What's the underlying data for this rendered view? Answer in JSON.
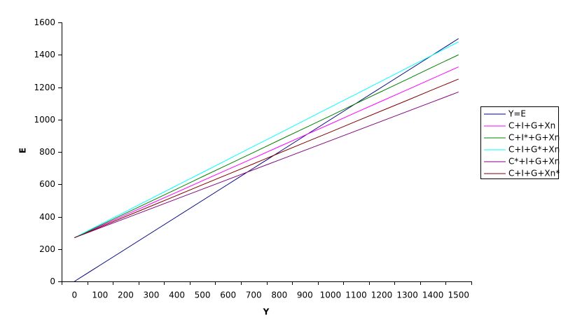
{
  "chart_data": {
    "type": "line",
    "x_label": "Y",
    "y_label": "E",
    "categories": [
      "0",
      "100",
      "200",
      "300",
      "400",
      "500",
      "600",
      "700",
      "800",
      "900",
      "1000",
      "1100",
      "1200",
      "1300",
      "1400",
      "1500"
    ],
    "series": [
      {
        "name": "Y=E",
        "color": "#000080",
        "values": [
          0,
          100,
          200,
          300,
          400,
          500,
          600,
          700,
          800,
          900,
          1000,
          1100,
          1200,
          1300,
          1400,
          1500
        ]
      },
      {
        "name": "C+I+G+Xn",
        "color": "#ff00ff",
        "values": [
          270,
          340,
          411,
          481,
          551,
          622,
          692,
          762,
          833,
          903,
          973,
          1044,
          1114,
          1184,
          1255,
          1325
        ]
      },
      {
        "name": "C+I*+G+Xn",
        "color": "#008000",
        "values": [
          270,
          345,
          421,
          496,
          571,
          647,
          722,
          797,
          873,
          948,
          1023,
          1099,
          1174,
          1249,
          1325,
          1400
        ]
      },
      {
        "name": "C+I+G*+Xn",
        "color": "#00ffff",
        "values": [
          270,
          351,
          431,
          512,
          593,
          673,
          754,
          835,
          915,
          996,
          1077,
          1157,
          1238,
          1319,
          1399,
          1480
        ]
      },
      {
        "name": "C*+I+G+Xn",
        "color": "#800080",
        "values": [
          270,
          330,
          390,
          450,
          510,
          570,
          630,
          690,
          750,
          810,
          870,
          930,
          990,
          1050,
          1110,
          1170
        ]
      },
      {
        "name": "C+I+G+Xn*",
        "color": "#800000",
        "values": [
          270,
          335,
          401,
          466,
          531,
          597,
          662,
          727,
          793,
          858,
          923,
          989,
          1054,
          1119,
          1185,
          1250
        ]
      }
    ],
    "ylim": [
      0,
      1600
    ],
    "yticks": [
      0,
      200,
      400,
      600,
      800,
      1000,
      1200,
      1400,
      1600
    ],
    "grid": false,
    "legend": "right"
  }
}
